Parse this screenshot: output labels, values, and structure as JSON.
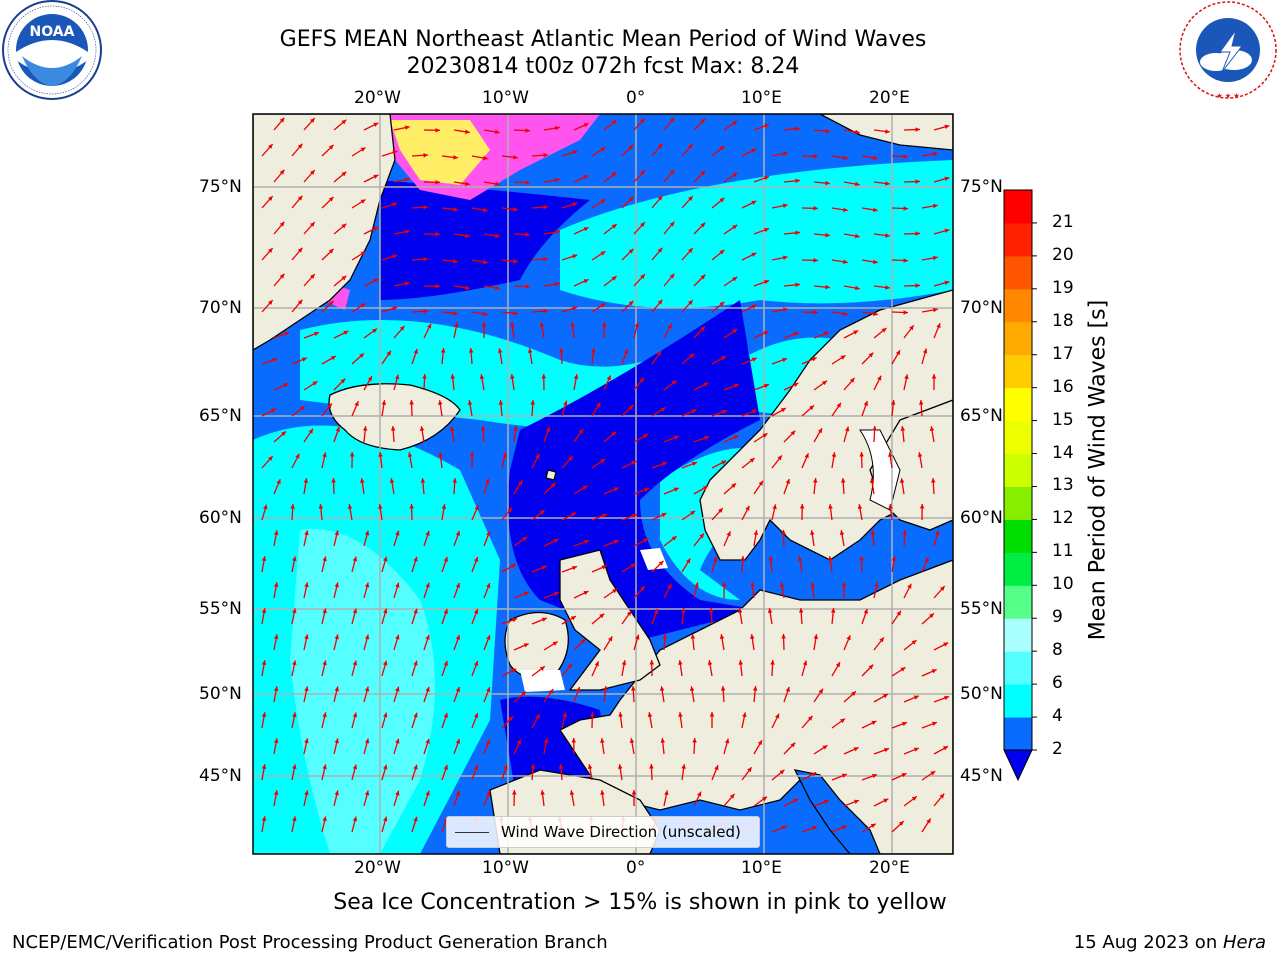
{
  "header": {
    "title_line1": "GEFS MEAN Northeast Atlantic Mean Period of Wind Waves",
    "title_line2": "20230814 t00z 072h fcst   Max: 8.24"
  },
  "logos": {
    "noaa": "NOAA",
    "noaa_ring_text": "NATIONAL OCEANIC AND ATMOSPHERIC ADMINISTRATION · U.S. DEPARTMENT OF COMMERCE",
    "nws_ring_text": "NATIONAL WEATHER SERVICE"
  },
  "map": {
    "lon_labels": [
      "20°W",
      "10°W",
      "0°",
      "10°E",
      "20°E"
    ],
    "lat_labels": [
      "75°N",
      "70°N",
      "65°N",
      "60°N",
      "55°N",
      "50°N",
      "45°N"
    ],
    "legend_text": "Wind Wave Direction (unscaled)",
    "colors": {
      "land": "#eeedde",
      "coast": "#000000",
      "grid": "#b0b0b0",
      "arrows": "#ee0000",
      "ice_pink": "#ff55ee",
      "ice_yellow": "#ffee66"
    }
  },
  "colorbar": {
    "title": "Mean Period of Wind Waves [s]",
    "tick_labels": [
      "2",
      "4",
      "6",
      "8",
      "9",
      "10",
      "11",
      "12",
      "13",
      "14",
      "15",
      "16",
      "17",
      "18",
      "19",
      "20",
      "21"
    ],
    "colors": [
      "#0000ee",
      "#0a6cff",
      "#00ffff",
      "#55ffff",
      "#aaffff",
      "#55ff88",
      "#00ee44",
      "#00dd00",
      "#88ee00",
      "#ccff00",
      "#eeff00",
      "#ffff00",
      "#ffcc00",
      "#ffaa00",
      "#ff8800",
      "#ff5500",
      "#ff2200",
      "#ff0000"
    ]
  },
  "caption": "Sea Ice Concentration > 15% is shown in pink to yellow",
  "footer": {
    "left": "NCEP/EMC/Verification Post Processing Product Generation Branch",
    "right_date": "15 Aug 2023 on ",
    "right_host": "Hera"
  }
}
